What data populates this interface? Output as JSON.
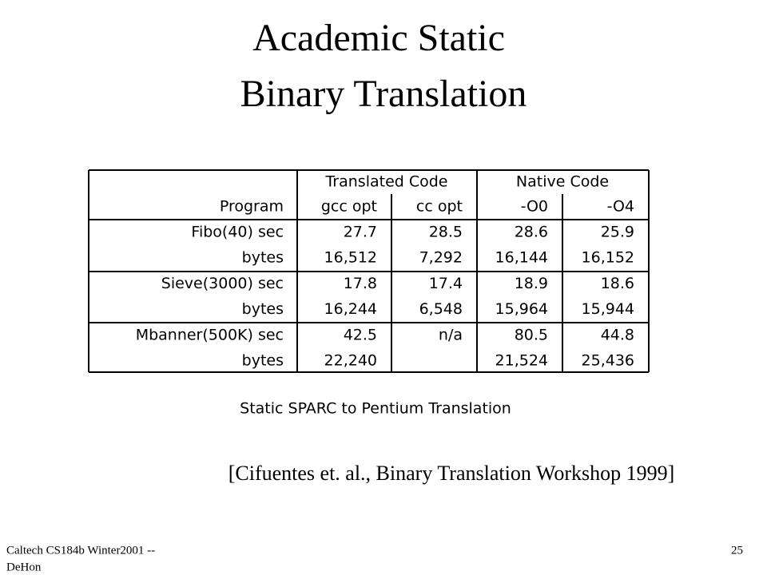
{
  "title": [
    "Academic Static",
    "Binary Translation"
  ],
  "table": {
    "group_headers": [
      "Translated Code",
      "Native Code"
    ],
    "column_headers": [
      "Program",
      "gcc opt",
      "cc opt",
      "-O0",
      "-O4"
    ],
    "rows": [
      [
        "Fibo(40) sec",
        "27.7",
        "28.5",
        "28.6",
        "25.9"
      ],
      [
        "bytes",
        "16,512",
        "7,292",
        "16,144",
        "16,152"
      ],
      [
        "Sieve(3000) sec",
        "17.8",
        "17.4",
        "18.9",
        "18.6"
      ],
      [
        "bytes",
        "16,244",
        "6,548",
        "15,964",
        "15,944"
      ],
      [
        "Mbanner(500K) sec",
        "42.5",
        "n/a",
        "80.5",
        "44.8"
      ],
      [
        "bytes",
        "22,240",
        null,
        "21,524",
        "25,436"
      ]
    ]
  },
  "caption": "Static SPARC to Pentium Translation",
  "citation": "[Cifuentes et. al., Binary Translation Workshop 1999]",
  "footer": {
    "course": [
      "Caltech CS184b Winter2001 --",
      "DeHon"
    ],
    "page": "25"
  }
}
